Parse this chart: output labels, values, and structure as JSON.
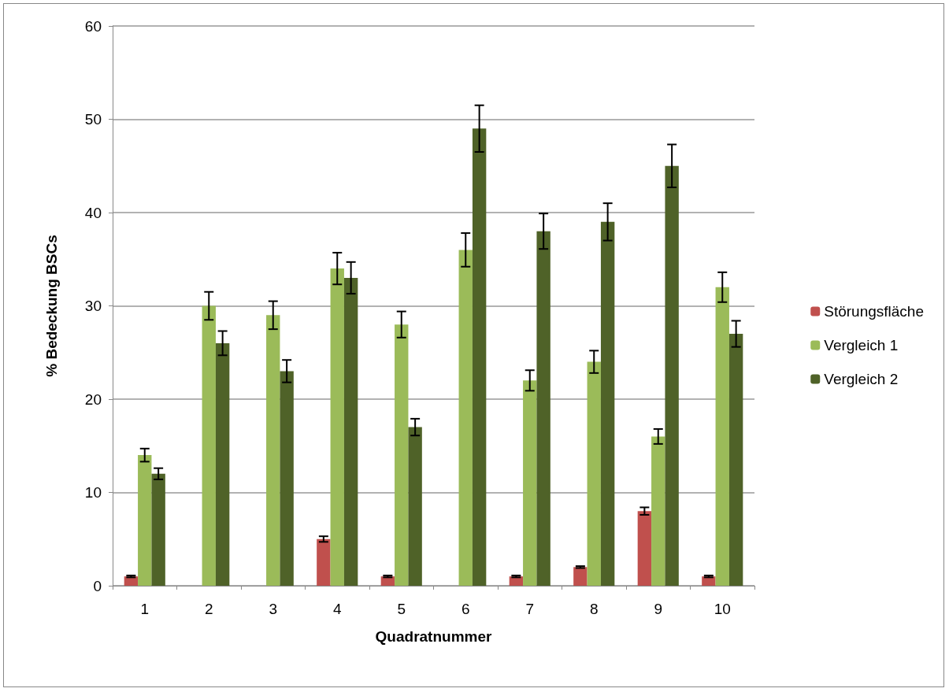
{
  "chart_data": {
    "type": "bar",
    "xlabel": "Quadratnummer",
    "ylabel": "% Bedeckung BSCs",
    "categories": [
      "1",
      "2",
      "3",
      "4",
      "5",
      "6",
      "7",
      "8",
      "9",
      "10"
    ],
    "series": [
      {
        "name": "Störungsfläche",
        "color": "#c0504d",
        "values": [
          1,
          0,
          0,
          5,
          1,
          0,
          1,
          2,
          8,
          1
        ],
        "errors": [
          0.1,
          null,
          null,
          0.3,
          0.1,
          null,
          0.1,
          0.1,
          0.4,
          0.1
        ]
      },
      {
        "name": "Vergleich 1",
        "color": "#9bbb59",
        "values": [
          14,
          30,
          29,
          34,
          28,
          36,
          22,
          24,
          16,
          32
        ],
        "errors": [
          0.7,
          1.5,
          1.5,
          1.7,
          1.4,
          1.8,
          1.1,
          1.2,
          0.8,
          1.6
        ]
      },
      {
        "name": "Vergleich 2",
        "color": "#4f6228",
        "values": [
          12,
          26,
          23,
          33,
          17,
          49,
          38,
          39,
          45,
          27
        ],
        "errors": [
          0.6,
          1.3,
          1.2,
          1.7,
          0.9,
          2.5,
          1.9,
          2.0,
          2.3,
          1.4
        ]
      }
    ],
    "ylim": [
      0,
      60
    ],
    "yticks": [
      0,
      10,
      20,
      30,
      40,
      50,
      60
    ],
    "grid": "y",
    "legend": "right"
  }
}
